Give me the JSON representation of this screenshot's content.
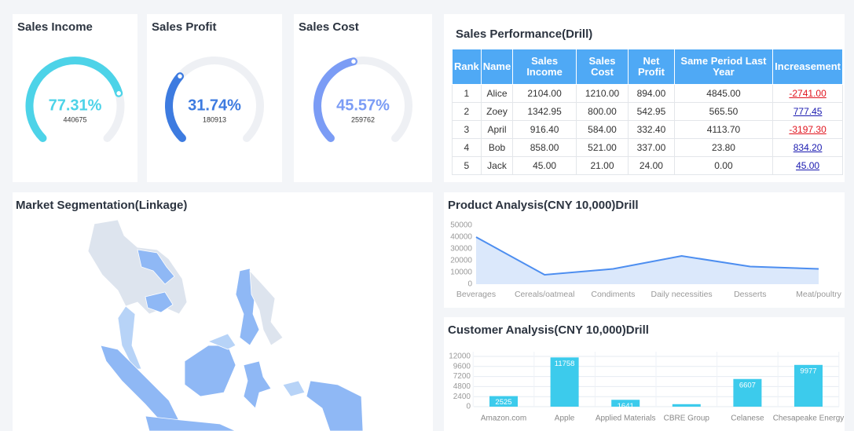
{
  "gauges": [
    {
      "title": "Sales Income",
      "value": 77.31,
      "value_label": "77.31%",
      "sub": "440675",
      "range": [
        0,
        100
      ],
      "color": "#4dd3e8"
    },
    {
      "title": "Sales Profit",
      "value": 31.74,
      "value_label": "31.74%",
      "sub": "180913",
      "range": [
        0,
        100
      ],
      "color": "#3d7be0"
    },
    {
      "title": "Sales Cost",
      "value": 45.57,
      "value_label": "45.57%",
      "sub": "259762",
      "range": [
        0,
        100
      ],
      "color": "#7b9cf5"
    }
  ],
  "table": {
    "title": "Sales Performance(Drill)",
    "columns": [
      "Rank",
      "Name",
      "Sales Income",
      "Sales Cost",
      "Net Profit",
      "Same Period Last Year",
      "Increasement"
    ],
    "rows": [
      [
        "1",
        "Alice",
        "2104.00",
        "1210.00",
        "894.00",
        "4845.00",
        "-2741.00"
      ],
      [
        "2",
        "Zoey",
        "1342.95",
        "800.00",
        "542.95",
        "565.50",
        "777.45"
      ],
      [
        "3",
        "April",
        "916.40",
        "584.00",
        "332.40",
        "4113.70",
        "-3197.30"
      ],
      [
        "4",
        "Bob",
        "858.00",
        "521.00",
        "337.00",
        "23.80",
        "834.20"
      ],
      [
        "5",
        "Jack",
        "45.00",
        "21.00",
        "24.00",
        "0.00",
        "45.00"
      ]
    ]
  },
  "map": {
    "title": "Market Segmentation(Linkage)"
  },
  "chart_data": [
    {
      "type": "line",
      "title": "Product Analysis(CNY 10,000)Drill",
      "categories": [
        "Beverages",
        "Cereals/oatmeal",
        "Condiments",
        "Daily necessities",
        "Desserts",
        "Meat/poultry"
      ],
      "values": [
        40000,
        8000,
        13000,
        24000,
        15000,
        13000
      ],
      "color": "#4d8ef0",
      "area_color": "#dbe8fb",
      "ylim": [
        0,
        50000
      ],
      "yticks": [
        0,
        10000,
        20000,
        30000,
        40000,
        50000
      ]
    },
    {
      "type": "bar",
      "title": "Customer Analysis(CNY 10,000)Drill",
      "categories": [
        "Amazon.com",
        "Apple",
        "Applied Materials",
        "CBRE Group",
        "Celanese",
        "Chesapeake Energy"
      ],
      "values": [
        2525,
        11758,
        1641,
        600,
        6607,
        9977
      ],
      "color": "#3ccbec",
      "ylim": [
        0,
        12000
      ],
      "yticks": [
        0,
        2400,
        4800,
        7200,
        9600,
        12000
      ],
      "grid": true
    }
  ]
}
